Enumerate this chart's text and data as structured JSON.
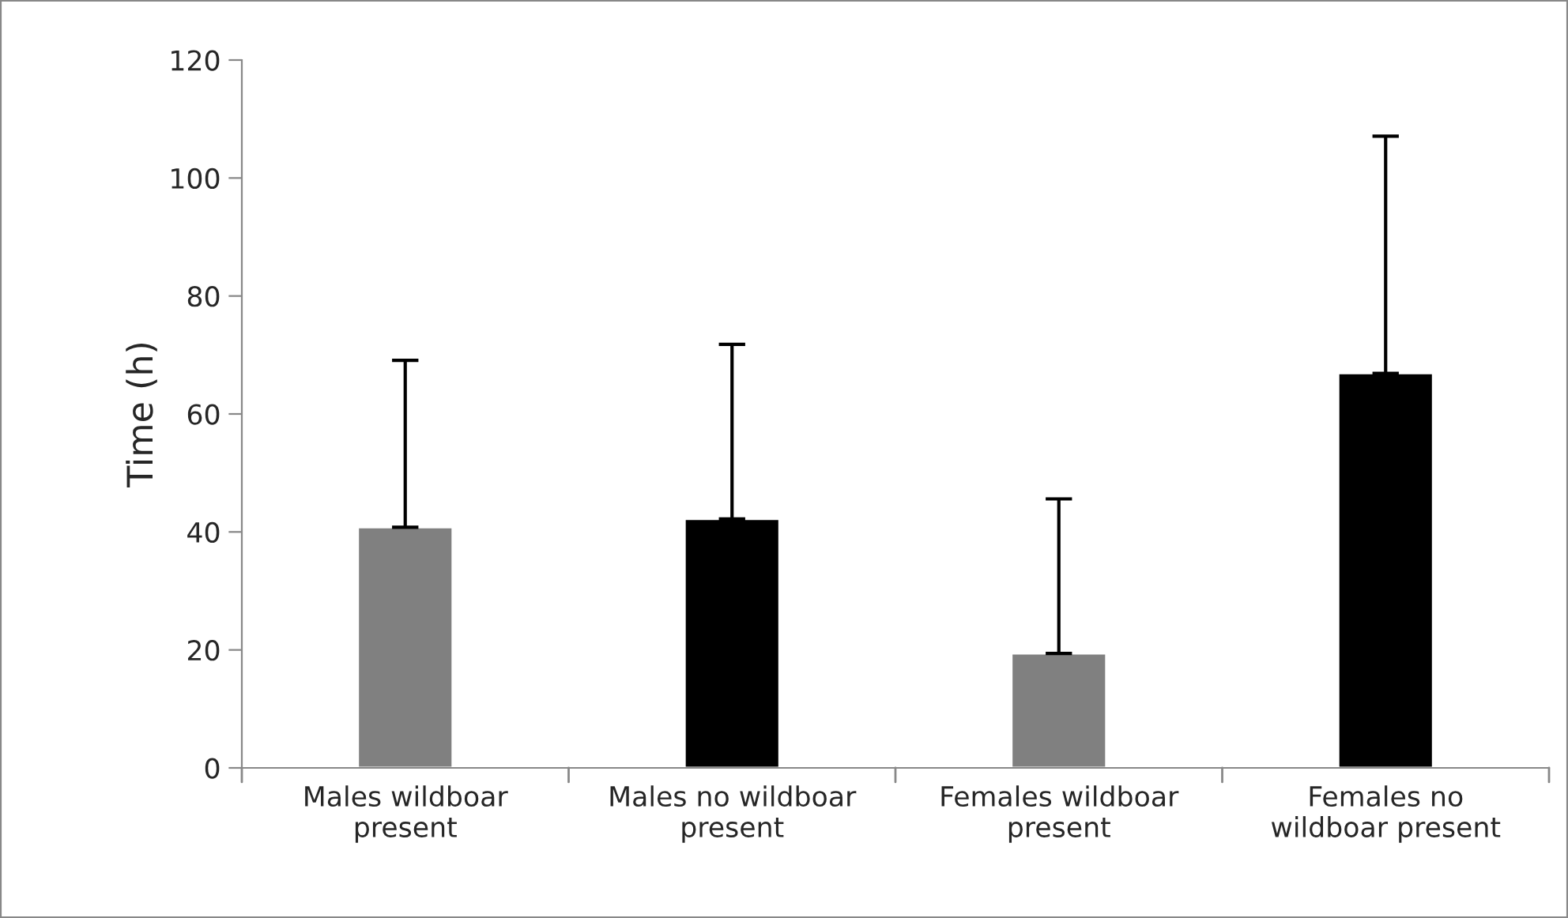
{
  "chart_data": {
    "type": "bar",
    "ylabel": "Time (h)",
    "categories": [
      "Males wildboar present",
      "Males no wildboar present",
      "Females wildboar present",
      "Females no wildboar present"
    ],
    "values": [
      40.8,
      42.2,
      19.4,
      66.9
    ],
    "colors": [
      "#808080",
      "#000000",
      "#808080",
      "#000000"
    ],
    "errors": [
      [
        40.8,
        69.1
      ],
      [
        42.2,
        71.8
      ],
      [
        19.4,
        45.6
      ],
      [
        66.9,
        107.1
      ]
    ],
    "ylim": [
      0,
      120
    ],
    "yticks": [
      0,
      20,
      40,
      60,
      80,
      100,
      120
    ],
    "grid": false
  }
}
